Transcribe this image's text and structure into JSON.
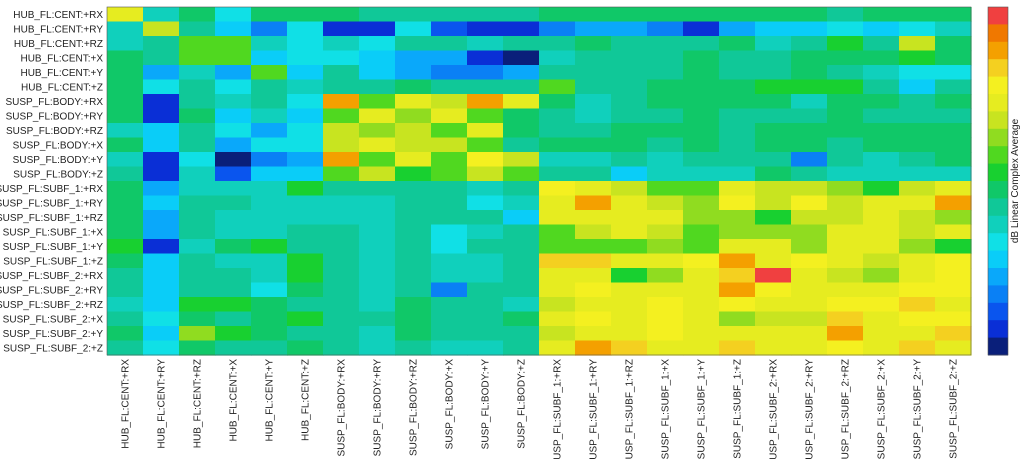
{
  "chart_data": {
    "type": "heatmap",
    "title": "",
    "xlabel": "",
    "ylabel": "",
    "colorbar_label": "dB  Linear Complex Average",
    "rows": [
      "HUB_FL:CENT:+RX",
      "HUB_FL:CENT:+RY",
      "HUB_FL:CENT:+RZ",
      "HUB_FL:CENT:+X",
      "HUB_FL:CENT:+Y",
      "HUB_FL:CENT:+Z",
      "SUSP_FL:BODY:+RX",
      "SUSP_FL:BODY:+RY",
      "SUSP_FL:BODY:+RZ",
      "SUSP_FL:BODY:+X",
      "SUSP_FL:BODY:+Y",
      "SUSP_FL:BODY:+Z",
      "SUSP_FL:SUBF_1:+RX",
      "SUSP_FL:SUBF_1:+RY",
      "SUSP_FL:SUBF_1:+RZ",
      "SUSP_FL:SUBF_1:+X",
      "SUSP_FL:SUBF_1:+Y",
      "SUSP_FL:SUBF_1:+Z",
      "SUSP_FL:SUBF_2:+RX",
      "SUSP_FL:SUBF_2:+RY",
      "SUSP_FL:SUBF_2:+RZ",
      "SUSP_FL:SUBF_2:+X",
      "SUSP_FL:SUBF_2:+Y",
      "SUSP_FL:SUBF_2:+Z"
    ],
    "columns": [
      "HUB_FL:CENT:+RX",
      "HUB_FL:CENT:+RY",
      "HUB_FL:CENT:+RZ",
      "HUB_FL:CENT:+X",
      "HUB_FL:CENT:+Y",
      "HUB_FL:CENT:+Z",
      "SUSP_FL:BODY:+RX",
      "SUSP_FL:BODY:+RY",
      "SUSP_FL:BODY:+RZ",
      "SUSP_FL:BODY:+X",
      "SUSP_FL:BODY:+Y",
      "SUSP_FL:BODY:+Z",
      "SUSP_FL:SUBF_1:+RX",
      "SUSP_FL:SUBF_1:+RY",
      "SUSP_FL:SUBF_1:+RZ",
      "SUSP_FL:SUBF_1:+X",
      "SUSP_FL:SUBF_1:+Y",
      "SUSP_FL:SUBF_1:+Z",
      "SUSP_FL:SUBF_2:+RX",
      "SUSP_FL:SUBF_2:+RY",
      "SUSP_FL:SUBF_2:+RZ",
      "SUSP_FL:SUBF_2:+X",
      "SUSP_FL:SUBF_2:+Y",
      "SUSP_FL:SUBF_2:+Z"
    ],
    "value_range": [
      0,
      1
    ],
    "colorscale": [
      "#0a1f7a",
      "#0a2fd6",
      "#0a55ee",
      "#0a80f5",
      "#0aa8fa",
      "#0acdf8",
      "#10e0e6",
      "#10d0bc",
      "#10c898",
      "#10c868",
      "#18d030",
      "#50d820",
      "#90dc20",
      "#c8e420",
      "#e6ec20",
      "#f4f020",
      "#f4d020",
      "#f4a000",
      "#f07800",
      "#f04040"
    ],
    "values": [
      [
        0.7,
        0.35,
        0.45,
        0.32,
        0.45,
        0.48,
        0.45,
        0.42,
        0.42,
        0.42,
        0.42,
        0.42,
        0.45,
        0.45,
        0.45,
        0.45,
        0.45,
        0.45,
        0.45,
        0.45,
        0.4,
        0.45,
        0.45,
        0.45
      ],
      [
        0.38,
        0.68,
        0.4,
        0.28,
        0.18,
        0.32,
        0.05,
        0.05,
        0.3,
        0.12,
        0.05,
        0.05,
        0.15,
        0.2,
        0.2,
        0.15,
        0.05,
        0.2,
        0.25,
        0.25,
        0.3,
        0.28,
        0.3,
        0.35
      ],
      [
        0.38,
        0.42,
        0.55,
        0.55,
        0.38,
        0.3,
        0.38,
        0.3,
        0.4,
        0.42,
        0.38,
        0.4,
        0.4,
        0.45,
        0.44,
        0.42,
        0.42,
        0.45,
        0.38,
        0.4,
        0.52,
        0.42,
        0.68,
        0.45
      ],
      [
        0.45,
        0.42,
        0.55,
        0.55,
        0.25,
        0.32,
        0.3,
        0.25,
        0.22,
        0.2,
        0.05,
        0.02,
        0.38,
        0.42,
        0.42,
        0.42,
        0.45,
        0.4,
        0.42,
        0.45,
        0.45,
        0.45,
        0.5,
        0.45
      ],
      [
        0.45,
        0.2,
        0.35,
        0.22,
        0.55,
        0.28,
        0.4,
        0.25,
        0.2,
        0.15,
        0.15,
        0.2,
        0.4,
        0.4,
        0.4,
        0.4,
        0.45,
        0.4,
        0.4,
        0.45,
        0.4,
        0.38,
        0.32,
        0.32
      ],
      [
        0.45,
        0.3,
        0.4,
        0.3,
        0.4,
        0.35,
        0.42,
        0.42,
        0.45,
        0.4,
        0.4,
        0.4,
        0.55,
        0.4,
        0.4,
        0.45,
        0.45,
        0.45,
        0.52,
        0.5,
        0.5,
        0.42,
        0.28,
        0.4
      ],
      [
        0.45,
        0.05,
        0.4,
        0.35,
        0.4,
        0.32,
        0.88,
        0.55,
        0.72,
        0.68,
        0.88,
        0.7,
        0.45,
        0.35,
        0.42,
        0.45,
        0.45,
        0.45,
        0.45,
        0.35,
        0.45,
        0.45,
        0.42,
        0.45
      ],
      [
        0.45,
        0.05,
        0.45,
        0.25,
        0.35,
        0.28,
        0.55,
        0.72,
        0.62,
        0.72,
        0.58,
        0.45,
        0.42,
        0.35,
        0.42,
        0.42,
        0.45,
        0.4,
        0.4,
        0.4,
        0.45,
        0.42,
        0.42,
        0.42
      ],
      [
        0.35,
        0.25,
        0.4,
        0.3,
        0.22,
        0.3,
        0.68,
        0.62,
        0.68,
        0.58,
        0.72,
        0.45,
        0.42,
        0.42,
        0.45,
        0.45,
        0.45,
        0.4,
        0.45,
        0.45,
        0.45,
        0.45,
        0.45,
        0.45
      ],
      [
        0.45,
        0.25,
        0.4,
        0.22,
        0.3,
        0.3,
        0.68,
        0.72,
        0.65,
        0.68,
        0.55,
        0.42,
        0.45,
        0.45,
        0.45,
        0.42,
        0.45,
        0.42,
        0.45,
        0.45,
        0.42,
        0.45,
        0.45,
        0.45
      ],
      [
        0.38,
        0.08,
        0.3,
        0.03,
        0.18,
        0.22,
        0.85,
        0.58,
        0.72,
        0.55,
        0.78,
        0.68,
        0.38,
        0.38,
        0.42,
        0.38,
        0.42,
        0.4,
        0.42,
        0.18,
        0.4,
        0.38,
        0.4,
        0.45
      ],
      [
        0.42,
        0.08,
        0.35,
        0.1,
        0.25,
        0.28,
        0.55,
        0.68,
        0.52,
        0.58,
        0.68,
        0.55,
        0.42,
        0.42,
        0.25,
        0.38,
        0.38,
        0.38,
        0.45,
        0.4,
        0.38,
        0.38,
        0.38,
        0.35
      ],
      [
        0.45,
        0.2,
        0.38,
        0.38,
        0.38,
        0.52,
        0.4,
        0.42,
        0.42,
        0.4,
        0.38,
        0.42,
        0.75,
        0.72,
        0.68,
        0.55,
        0.55,
        0.72,
        0.68,
        0.68,
        0.6,
        0.52,
        0.65,
        0.7
      ],
      [
        0.45,
        0.25,
        0.4,
        0.42,
        0.35,
        0.35,
        0.35,
        0.35,
        0.4,
        0.4,
        0.3,
        0.35,
        0.72,
        0.85,
        0.72,
        0.65,
        0.62,
        0.78,
        0.68,
        0.75,
        0.68,
        0.72,
        0.72,
        0.88
      ],
      [
        0.45,
        0.22,
        0.4,
        0.38,
        0.35,
        0.35,
        0.35,
        0.35,
        0.4,
        0.4,
        0.42,
        0.25,
        0.72,
        0.72,
        0.72,
        0.72,
        0.62,
        0.62,
        0.52,
        0.68,
        0.68,
        0.72,
        0.68,
        0.6
      ],
      [
        0.45,
        0.2,
        0.4,
        0.38,
        0.38,
        0.4,
        0.4,
        0.35,
        0.4,
        0.32,
        0.38,
        0.42,
        0.55,
        0.68,
        0.72,
        0.68,
        0.58,
        0.6,
        0.6,
        0.6,
        0.72,
        0.72,
        0.68,
        0.7
      ],
      [
        0.52,
        0.05,
        0.38,
        0.45,
        0.5,
        0.42,
        0.4,
        0.38,
        0.4,
        0.3,
        0.42,
        0.4,
        0.55,
        0.58,
        0.58,
        0.62,
        0.55,
        0.72,
        0.72,
        0.62,
        0.72,
        0.72,
        0.62,
        0.5
      ],
      [
        0.45,
        0.25,
        0.4,
        0.38,
        0.38,
        0.52,
        0.4,
        0.38,
        0.4,
        0.38,
        0.38,
        0.42,
        0.82,
        0.82,
        0.72,
        0.72,
        0.78,
        0.85,
        0.72,
        0.75,
        0.72,
        0.68,
        0.72,
        0.75
      ],
      [
        0.42,
        0.28,
        0.4,
        0.4,
        0.38,
        0.52,
        0.4,
        0.38,
        0.4,
        0.38,
        0.38,
        0.42,
        0.72,
        0.72,
        0.52,
        0.62,
        0.72,
        0.82,
        0.95,
        0.72,
        0.68,
        0.62,
        0.72,
        0.75
      ],
      [
        0.42,
        0.28,
        0.42,
        0.42,
        0.3,
        0.45,
        0.4,
        0.38,
        0.4,
        0.18,
        0.42,
        0.4,
        0.72,
        0.78,
        0.72,
        0.72,
        0.72,
        0.85,
        0.75,
        0.72,
        0.72,
        0.72,
        0.75,
        0.78
      ],
      [
        0.38,
        0.28,
        0.52,
        0.52,
        0.45,
        0.4,
        0.4,
        0.38,
        0.45,
        0.42,
        0.42,
        0.38,
        0.68,
        0.72,
        0.72,
        0.75,
        0.72,
        0.78,
        0.72,
        0.72,
        0.78,
        0.78,
        0.82,
        0.72
      ],
      [
        0.42,
        0.3,
        0.45,
        0.42,
        0.45,
        0.52,
        0.42,
        0.4,
        0.45,
        0.4,
        0.4,
        0.45,
        0.72,
        0.75,
        0.72,
        0.75,
        0.72,
        0.6,
        0.68,
        0.68,
        0.8,
        0.72,
        0.75,
        0.75
      ],
      [
        0.45,
        0.28,
        0.6,
        0.52,
        0.45,
        0.4,
        0.4,
        0.38,
        0.45,
        0.4,
        0.4,
        0.42,
        0.68,
        0.72,
        0.72,
        0.75,
        0.72,
        0.7,
        0.72,
        0.72,
        0.85,
        0.72,
        0.72,
        0.8
      ],
      [
        0.42,
        0.3,
        0.45,
        0.42,
        0.42,
        0.45,
        0.4,
        0.38,
        0.42,
        0.38,
        0.38,
        0.42,
        0.72,
        0.85,
        0.8,
        0.72,
        0.72,
        0.8,
        0.72,
        0.72,
        0.78,
        0.72,
        0.8,
        0.72
      ]
    ]
  }
}
